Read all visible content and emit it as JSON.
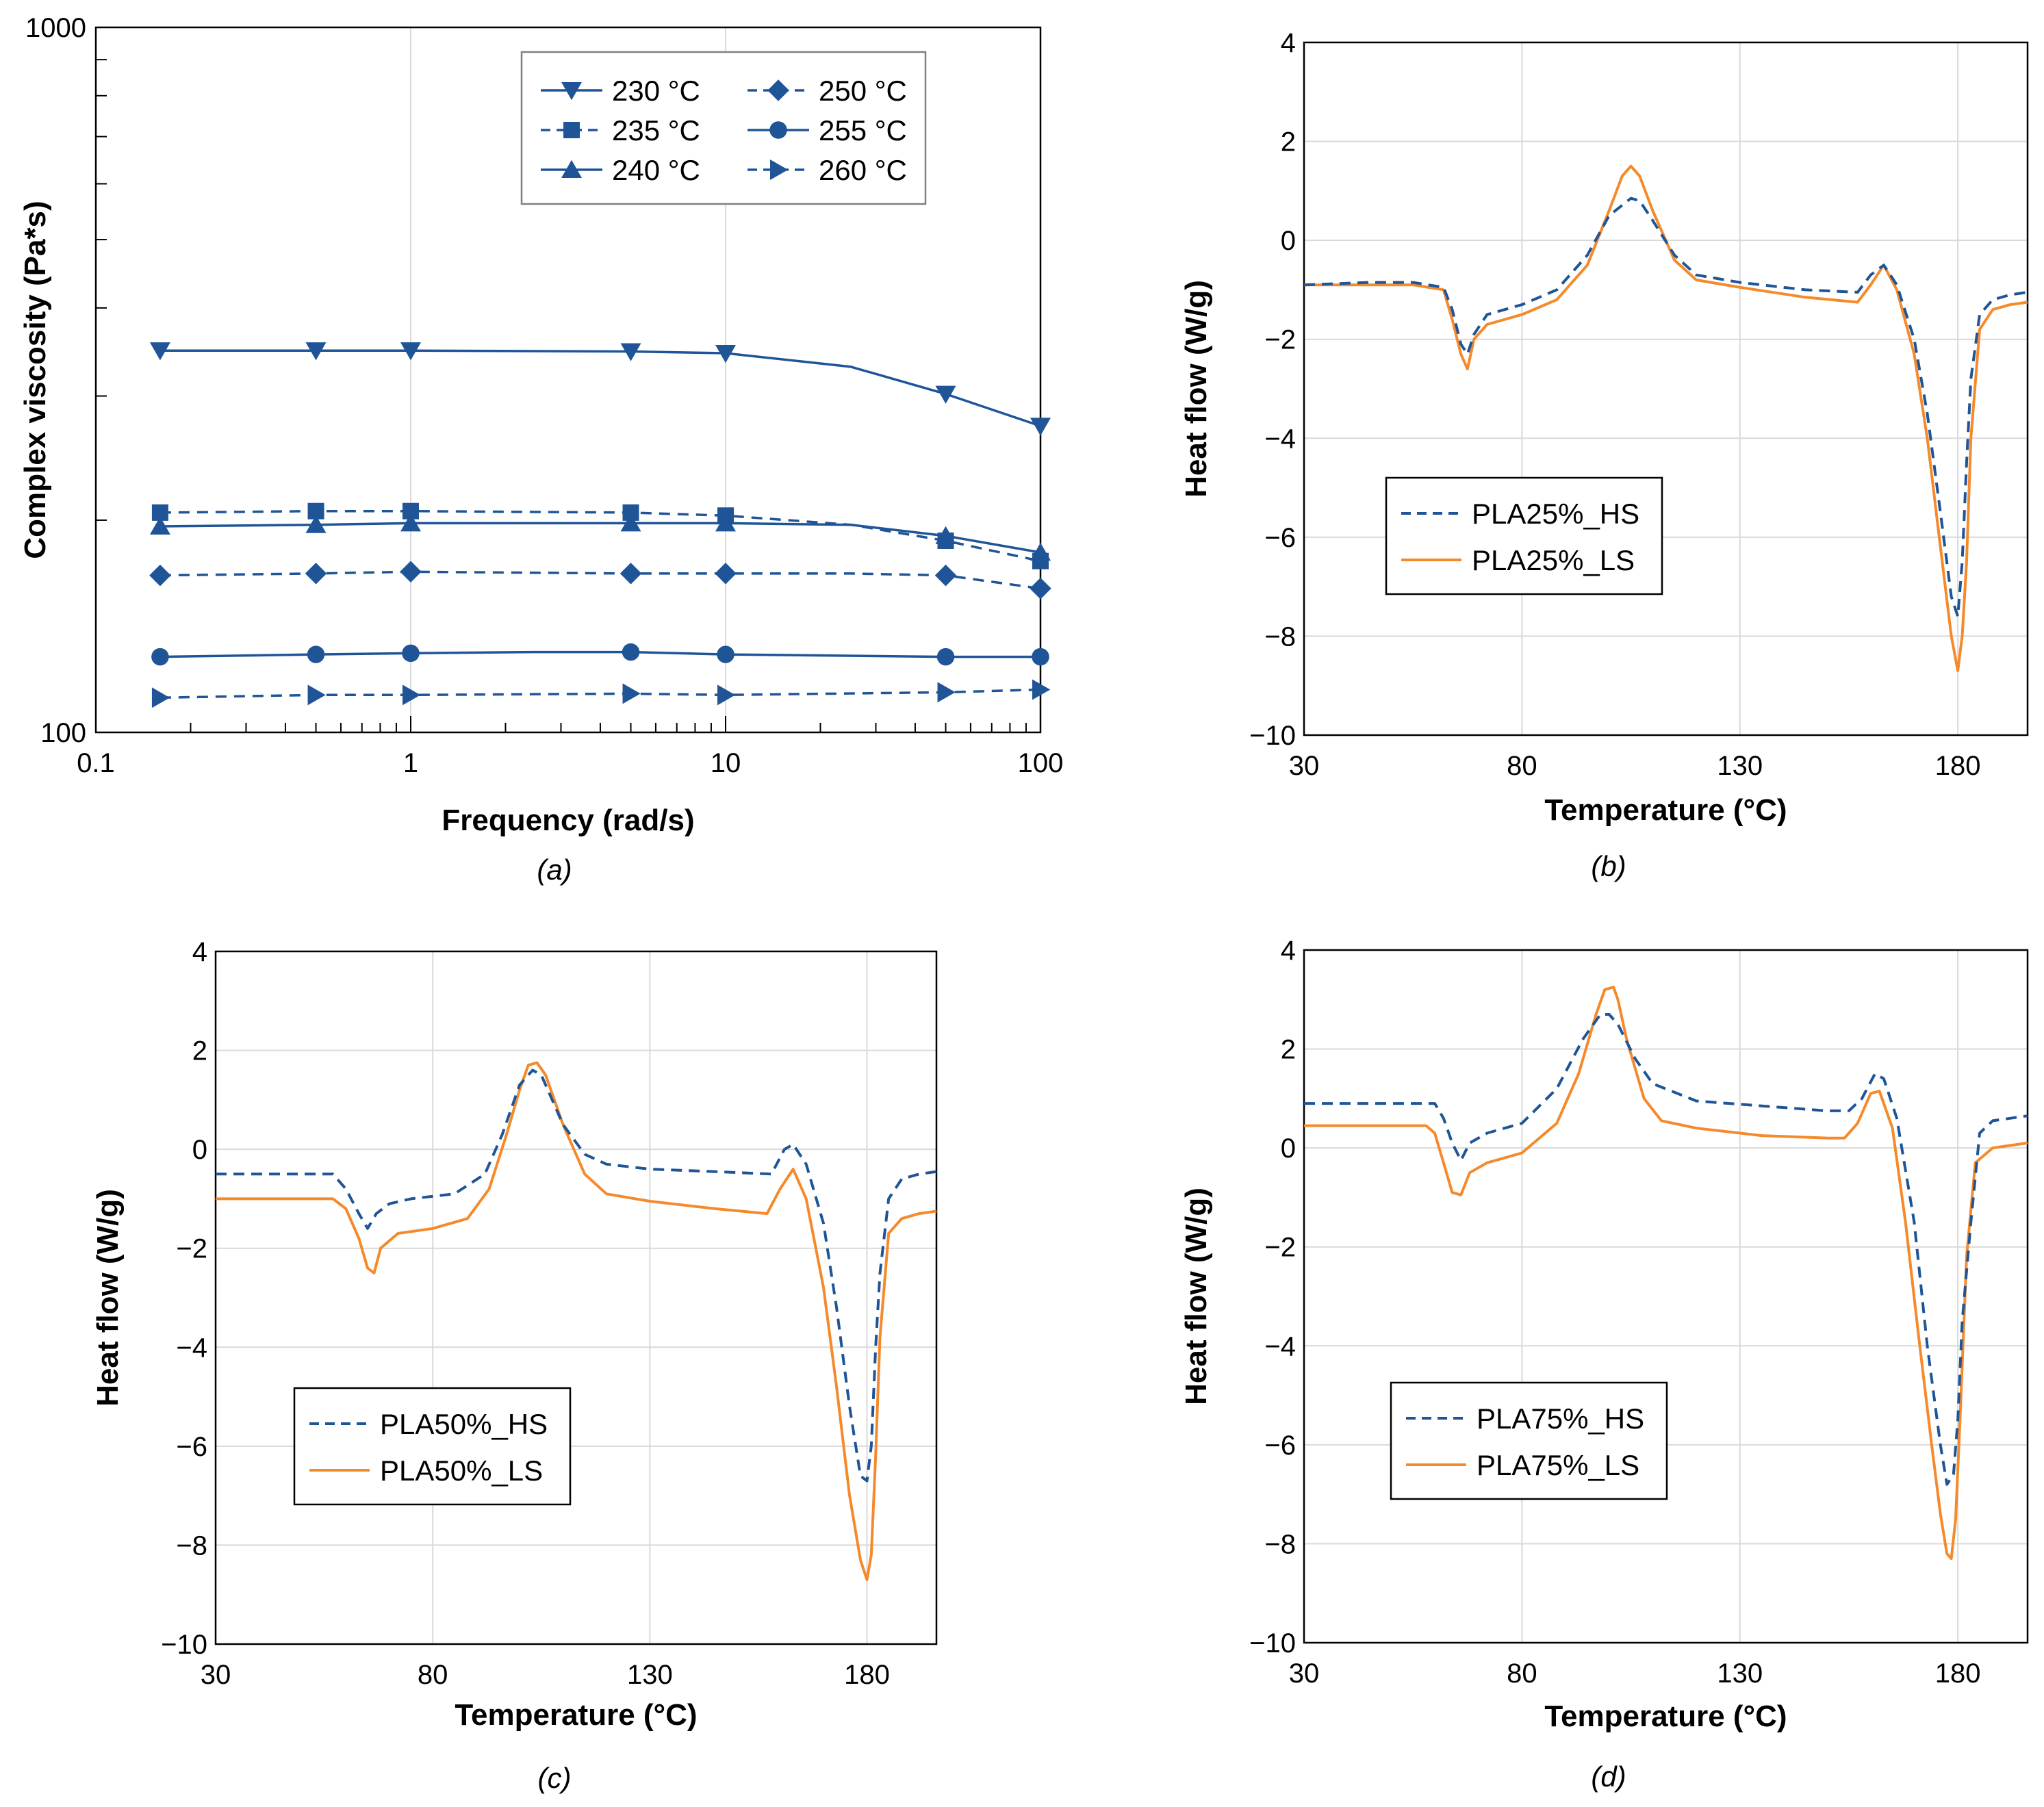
{
  "colors": {
    "blue": "#1F5597",
    "orange": "#F58A2C",
    "grid": "#d9d9d9",
    "axis": "#000000",
    "legend_border": "#808080"
  },
  "chart_data": [
    {
      "id": "a",
      "type": "line",
      "caption": "(a)",
      "xlabel": "Frequency (rad/s)",
      "ylabel": "Complex viscosity (Pa*s)",
      "xscale": "log",
      "yscale": "log",
      "xlim": [
        0.1,
        100
      ],
      "ylim": [
        100,
        1000
      ],
      "xticks": [
        0.1,
        1,
        10,
        100
      ],
      "xtick_labels": [
        "0.1",
        "1",
        "10",
        "100"
      ],
      "ytick_labels": [
        "100",
        "1000"
      ],
      "legend_position": "top-right",
      "series": [
        {
          "name": "230 °C",
          "line": "solid",
          "marker": "triangle-down",
          "x": [
            0.16,
            0.5,
            1,
            5,
            10,
            25,
            50,
            100
          ],
          "y": [
            348,
            348,
            348,
            347,
            345,
            330,
            302,
            272
          ]
        },
        {
          "name": "235 °C",
          "line": "dashed",
          "marker": "square",
          "x": [
            0.16,
            0.5,
            1,
            5,
            10,
            25,
            50,
            100
          ],
          "y": [
            205,
            206,
            206,
            205,
            203,
            197,
            187,
            175
          ]
        },
        {
          "name": "240 °C",
          "line": "solid",
          "marker": "triangle-up",
          "x": [
            0.16,
            0.5,
            1,
            5,
            10,
            25,
            50,
            100
          ],
          "y": [
            196,
            197,
            198,
            198,
            198,
            197,
            190,
            180
          ]
        },
        {
          "name": "250 °C",
          "line": "dashed",
          "marker": "diamond",
          "x": [
            0.16,
            0.5,
            1,
            5,
            10,
            25,
            50,
            100
          ],
          "y": [
            167,
            168,
            169,
            168,
            168,
            168,
            167,
            160
          ]
        },
        {
          "name": "255 °C",
          "line": "solid",
          "marker": "circle",
          "x": [
            0.16,
            0.5,
            1,
            2.5,
            5,
            10,
            50,
            100
          ],
          "y": [
            128,
            129,
            129.5,
            130,
            130,
            129,
            128,
            128
          ]
        },
        {
          "name": "260 °C",
          "line": "dashed",
          "marker": "triangle-right",
          "x": [
            0.16,
            0.5,
            1,
            5,
            10,
            50,
            100
          ],
          "y": [
            112,
            113,
            113,
            113.5,
            113,
            114,
            115
          ]
        }
      ]
    },
    {
      "id": "b",
      "type": "line",
      "caption": "(b)",
      "xlabel": "Temperature (°C)",
      "ylabel": "Heat flow (W/g)",
      "xlim": [
        30,
        196
      ],
      "ylim": [
        -10,
        4
      ],
      "xticks": [
        30,
        80,
        130,
        180
      ],
      "yticks": [
        -10,
        -8,
        -6,
        -4,
        -2,
        0,
        2,
        4
      ],
      "ytick_labels": [
        "−10",
        "−8",
        "−6",
        "−4",
        "−2",
        "0",
        "2",
        "4"
      ],
      "legend_position": "center-left",
      "series": [
        {
          "name": "PLA25%_HS",
          "color": "blue",
          "line": "dashed",
          "x": [
            30,
            45,
            55,
            62,
            64,
            66,
            67.5,
            69,
            72,
            80,
            88,
            95,
            100,
            105,
            107,
            110,
            115,
            120,
            130,
            145,
            157,
            160,
            163,
            166,
            170,
            173,
            176,
            178.5,
            180,
            181,
            182,
            183,
            185,
            188,
            192,
            196
          ],
          "y": [
            -0.9,
            -0.85,
            -0.85,
            -0.95,
            -1.4,
            -2.1,
            -2.3,
            -1.9,
            -1.5,
            -1.3,
            -1.0,
            -0.3,
            0.5,
            0.85,
            0.8,
            0.4,
            -0.3,
            -0.7,
            -0.85,
            -1.0,
            -1.05,
            -0.7,
            -0.5,
            -0.9,
            -2.0,
            -3.5,
            -5.5,
            -7.2,
            -7.6,
            -6.5,
            -4.5,
            -2.8,
            -1.5,
            -1.2,
            -1.1,
            -1.05
          ]
        },
        {
          "name": "PLA25%_LS",
          "color": "orange",
          "line": "solid",
          "x": [
            30,
            45,
            55,
            62,
            64,
            66,
            67.5,
            69,
            72,
            80,
            88,
            95,
            100,
            103,
            105,
            107,
            110,
            115,
            120,
            130,
            145,
            157,
            160,
            163,
            166,
            170,
            173,
            176,
            178.5,
            180,
            181,
            182,
            183,
            185,
            188,
            192,
            196
          ],
          "y": [
            -0.9,
            -0.9,
            -0.9,
            -1.0,
            -1.6,
            -2.3,
            -2.6,
            -2.0,
            -1.7,
            -1.5,
            -1.2,
            -0.5,
            0.6,
            1.3,
            1.5,
            1.3,
            0.6,
            -0.4,
            -0.8,
            -0.95,
            -1.15,
            -1.25,
            -0.9,
            -0.5,
            -1.0,
            -2.3,
            -4.0,
            -6.2,
            -8.0,
            -8.7,
            -8.0,
            -6.5,
            -4.0,
            -1.8,
            -1.4,
            -1.3,
            -1.25
          ]
        }
      ]
    },
    {
      "id": "c",
      "type": "line",
      "caption": "(c)",
      "xlabel": "Temperature (°C)",
      "ylabel": "Heat flow (W/g)",
      "xlim": [
        30,
        196
      ],
      "ylim": [
        -10,
        4
      ],
      "xticks": [
        30,
        80,
        130,
        180
      ],
      "yticks": [
        -10,
        -8,
        -6,
        -4,
        -2,
        0,
        2,
        4
      ],
      "ytick_labels": [
        "−10",
        "−8",
        "−6",
        "−4",
        "−2",
        "0",
        "2",
        "4"
      ],
      "legend_position": "lower-left",
      "series": [
        {
          "name": "PLA50%_HS",
          "color": "blue",
          "line": "dashed",
          "x": [
            30,
            45,
            57,
            60,
            63,
            65,
            67,
            70,
            75,
            85,
            92,
            96,
            100,
            103,
            105,
            110,
            115,
            120,
            130,
            145,
            158,
            161,
            163,
            166,
            170,
            173,
            176,
            178.5,
            180,
            181,
            182,
            183,
            185,
            188,
            192,
            196
          ],
          "y": [
            -0.5,
            -0.5,
            -0.5,
            -0.8,
            -1.3,
            -1.6,
            -1.3,
            -1.1,
            -1.0,
            -0.9,
            -0.5,
            0.3,
            1.3,
            1.6,
            1.5,
            0.5,
            -0.1,
            -0.3,
            -0.4,
            -0.45,
            -0.5,
            0.0,
            0.1,
            -0.3,
            -1.5,
            -3.2,
            -5.2,
            -6.6,
            -6.7,
            -6.0,
            -4.0,
            -2.5,
            -1.0,
            -0.6,
            -0.5,
            -0.45
          ]
        },
        {
          "name": "PLA50%_LS",
          "color": "orange",
          "line": "solid",
          "x": [
            30,
            45,
            57,
            60,
            63,
            65,
            66.5,
            68,
            72,
            80,
            88,
            93,
            97,
            100,
            102,
            104,
            106,
            110,
            115,
            120,
            130,
            145,
            157,
            160,
            163,
            166,
            170,
            173,
            176,
            178.5,
            180,
            181,
            182,
            183,
            185,
            188,
            192,
            196
          ],
          "y": [
            -1.0,
            -1.0,
            -1.0,
            -1.2,
            -1.8,
            -2.4,
            -2.5,
            -2.0,
            -1.7,
            -1.6,
            -1.4,
            -0.8,
            0.3,
            1.2,
            1.7,
            1.75,
            1.5,
            0.5,
            -0.5,
            -0.9,
            -1.05,
            -1.2,
            -1.3,
            -0.8,
            -0.4,
            -1.0,
            -2.8,
            -4.8,
            -7.0,
            -8.3,
            -8.7,
            -8.2,
            -6.2,
            -3.8,
            -1.7,
            -1.4,
            -1.3,
            -1.25
          ]
        }
      ]
    },
    {
      "id": "d",
      "type": "line",
      "caption": "(d)",
      "xlabel": "Temperature (°C)",
      "ylabel": "Heat flow (W/g)",
      "xlim": [
        30,
        196
      ],
      "ylim": [
        -10,
        4
      ],
      "xticks": [
        30,
        80,
        130,
        180
      ],
      "yticks": [
        -10,
        -8,
        -6,
        -4,
        -2,
        0,
        2,
        4
      ],
      "ytick_labels": [
        "−10",
        "−8",
        "−6",
        "−4",
        "−2",
        "0",
        "2",
        "4"
      ],
      "legend_position": "center-left",
      "series": [
        {
          "name": "PLA75%_HS",
          "color": "blue",
          "line": "dashed",
          "x": [
            30,
            45,
            60,
            62,
            64,
            66,
            68,
            72,
            80,
            88,
            94,
            98,
            100,
            102,
            106,
            110,
            120,
            135,
            150,
            155,
            158,
            161,
            163,
            166,
            170,
            173,
            176,
            177.5,
            179,
            180,
            181,
            183,
            185,
            188,
            192,
            196
          ],
          "y": [
            0.9,
            0.9,
            0.9,
            0.6,
            0.1,
            -0.25,
            0.1,
            0.3,
            0.5,
            1.2,
            2.2,
            2.7,
            2.7,
            2.5,
            1.8,
            1.3,
            0.95,
            0.85,
            0.75,
            0.75,
            1.0,
            1.5,
            1.4,
            0.6,
            -1.5,
            -4.0,
            -6.0,
            -6.8,
            -6.6,
            -5.5,
            -3.5,
            -1.5,
            0.3,
            0.55,
            0.6,
            0.65
          ]
        },
        {
          "name": "PLA75%_LS",
          "color": "orange",
          "line": "solid",
          "x": [
            30,
            45,
            58,
            60,
            62,
            64,
            66,
            68,
            72,
            80,
            88,
            93,
            97,
            99,
            101,
            102,
            104,
            108,
            112,
            120,
            135,
            150,
            154,
            157,
            160,
            162,
            165,
            168,
            171,
            174,
            176,
            177.5,
            178.5,
            179.5,
            180.5,
            182,
            184,
            188,
            192,
            196
          ],
          "y": [
            0.45,
            0.45,
            0.45,
            0.3,
            -0.3,
            -0.9,
            -0.95,
            -0.5,
            -0.3,
            -0.1,
            0.5,
            1.5,
            2.7,
            3.2,
            3.25,
            3.0,
            2.2,
            1.0,
            0.55,
            0.4,
            0.25,
            0.2,
            0.2,
            0.5,
            1.1,
            1.15,
            0.4,
            -1.5,
            -3.8,
            -6.0,
            -7.4,
            -8.2,
            -8.3,
            -7.5,
            -5.5,
            -2.2,
            -0.3,
            0.0,
            0.05,
            0.1
          ]
        }
      ]
    }
  ]
}
